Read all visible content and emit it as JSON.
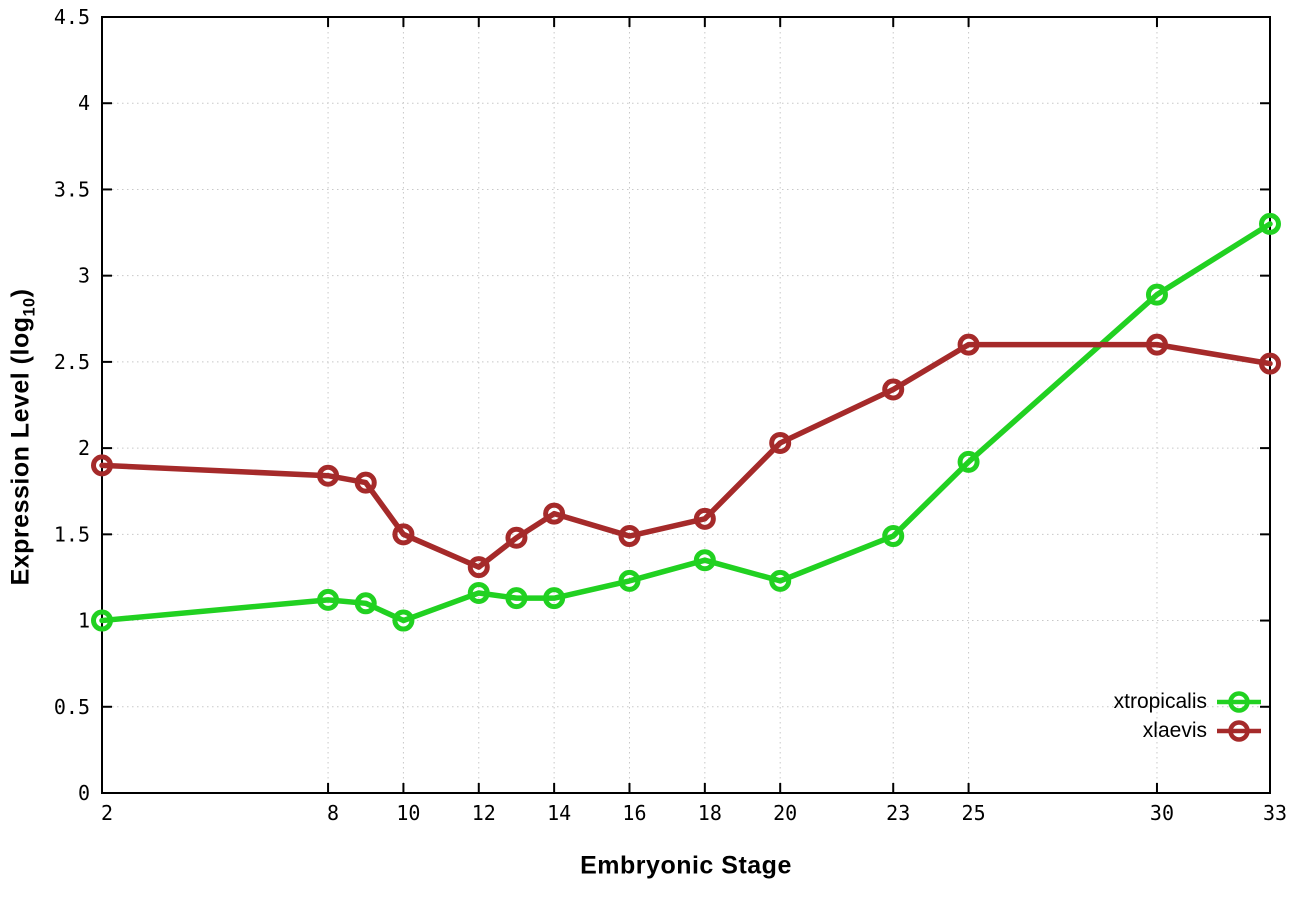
{
  "chart_data": {
    "type": "line",
    "x": [
      2,
      8,
      9,
      10,
      12,
      13,
      14,
      16,
      18,
      20,
      23,
      25,
      30,
      33
    ],
    "series": [
      {
        "name": "xtropicalis",
        "color": "#21d121",
        "marker": "open-circle",
        "values": [
          1.0,
          1.12,
          1.1,
          1.0,
          1.16,
          1.13,
          1.13,
          1.23,
          1.35,
          1.23,
          1.49,
          1.92,
          2.89,
          3.3
        ]
      },
      {
        "name": "xlaevis",
        "color": "#a52a2a",
        "marker": "open-circle",
        "values": [
          1.9,
          1.84,
          1.8,
          1.5,
          1.31,
          1.48,
          1.62,
          1.49,
          1.59,
          2.03,
          2.34,
          2.6,
          2.6,
          2.49
        ]
      }
    ],
    "title": "",
    "xlabel": "Embryonic Stage",
    "ylabel": "Expression Level (log10)",
    "ylabel_parts": {
      "prefix": "Expression Level (log",
      "sub": "10",
      "suffix": ")"
    },
    "xlim": [
      2,
      33
    ],
    "ylim": [
      0,
      4.5
    ],
    "xticks": [
      2,
      8,
      10,
      12,
      14,
      16,
      18,
      20,
      23,
      25,
      30,
      33
    ],
    "xtick_labels": [
      "2",
      "8",
      "10",
      "12",
      "14",
      "16",
      "18",
      "20",
      "23",
      "25",
      "30",
      "33"
    ],
    "yticks": [
      0,
      0.5,
      1,
      1.5,
      2,
      2.5,
      3,
      3.5,
      4,
      4.5
    ],
    "ytick_labels": [
      "0",
      "0.5",
      "1",
      "1.5",
      "2",
      "2.5",
      "3",
      "3.5",
      "4",
      "4.5"
    ],
    "grid": true,
    "grid_style": "dotted",
    "grid_color": "#c8c8c8",
    "border_color": "#000000",
    "background_color": "#ffffff",
    "legend_position": "bottom-right"
  }
}
